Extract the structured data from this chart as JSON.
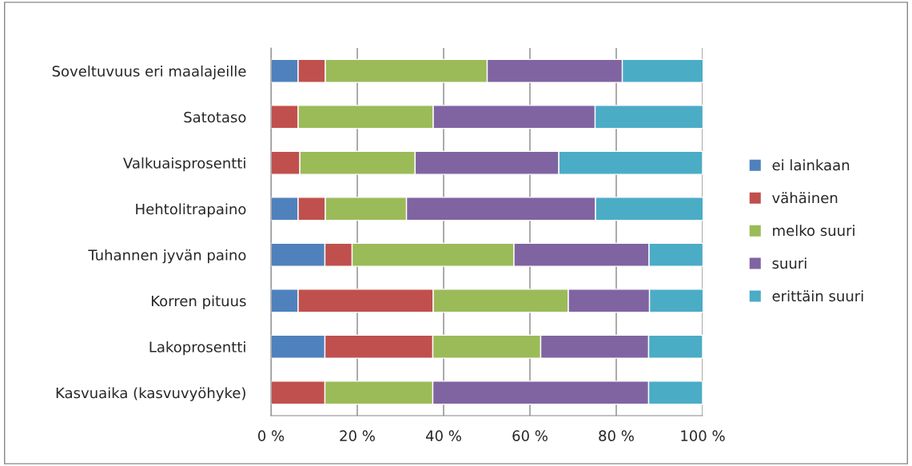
{
  "chart_data": {
    "type": "bar",
    "orientation": "horizontal",
    "stacked": true,
    "categories": [
      "Soveltuvuus eri maalajeille",
      "Satotaso",
      "Valkuaisprosentti",
      "Hehtolitrapaino",
      "Tuhannen jyvän paino",
      "Korren pituus",
      "Lakoprosentti",
      "Kasvuaika (kasvuvyöhyke)"
    ],
    "series": [
      {
        "name": "ei lainkaan",
        "color": "#4f81bd",
        "values": [
          6.3,
          0,
          0,
          6.3,
          12.5,
          6.3,
          12.5,
          0
        ]
      },
      {
        "name": "vähäinen",
        "color": "#c0504d",
        "values": [
          6.3,
          6.3,
          6.7,
          6.3,
          6.3,
          31.3,
          25,
          12.5
        ]
      },
      {
        "name": "melko suuri",
        "color": "#9bbb59",
        "values": [
          37.5,
          31.3,
          26.7,
          18.8,
          37.5,
          31.3,
          25,
          25
        ]
      },
      {
        "name": "suuri",
        "color": "#8064a2",
        "values": [
          31.3,
          37.5,
          33.3,
          43.8,
          31.3,
          18.8,
          25,
          50
        ]
      },
      {
        "name": "erittäin suuri",
        "color": "#4bacc6",
        "values": [
          18.8,
          25,
          33.3,
          25,
          12.5,
          12.5,
          12.5,
          12.5
        ]
      }
    ],
    "xlim": [
      0,
      100
    ],
    "xticks": [
      {
        "value": 0,
        "label": "0 %"
      },
      {
        "value": 20,
        "label": "20 %"
      },
      {
        "value": 40,
        "label": "40 %"
      },
      {
        "value": 60,
        "label": "60 %"
      },
      {
        "value": 80,
        "label": "80 %"
      },
      {
        "value": 100,
        "label": "100 %"
      }
    ],
    "grid": "x",
    "legend": "right"
  }
}
